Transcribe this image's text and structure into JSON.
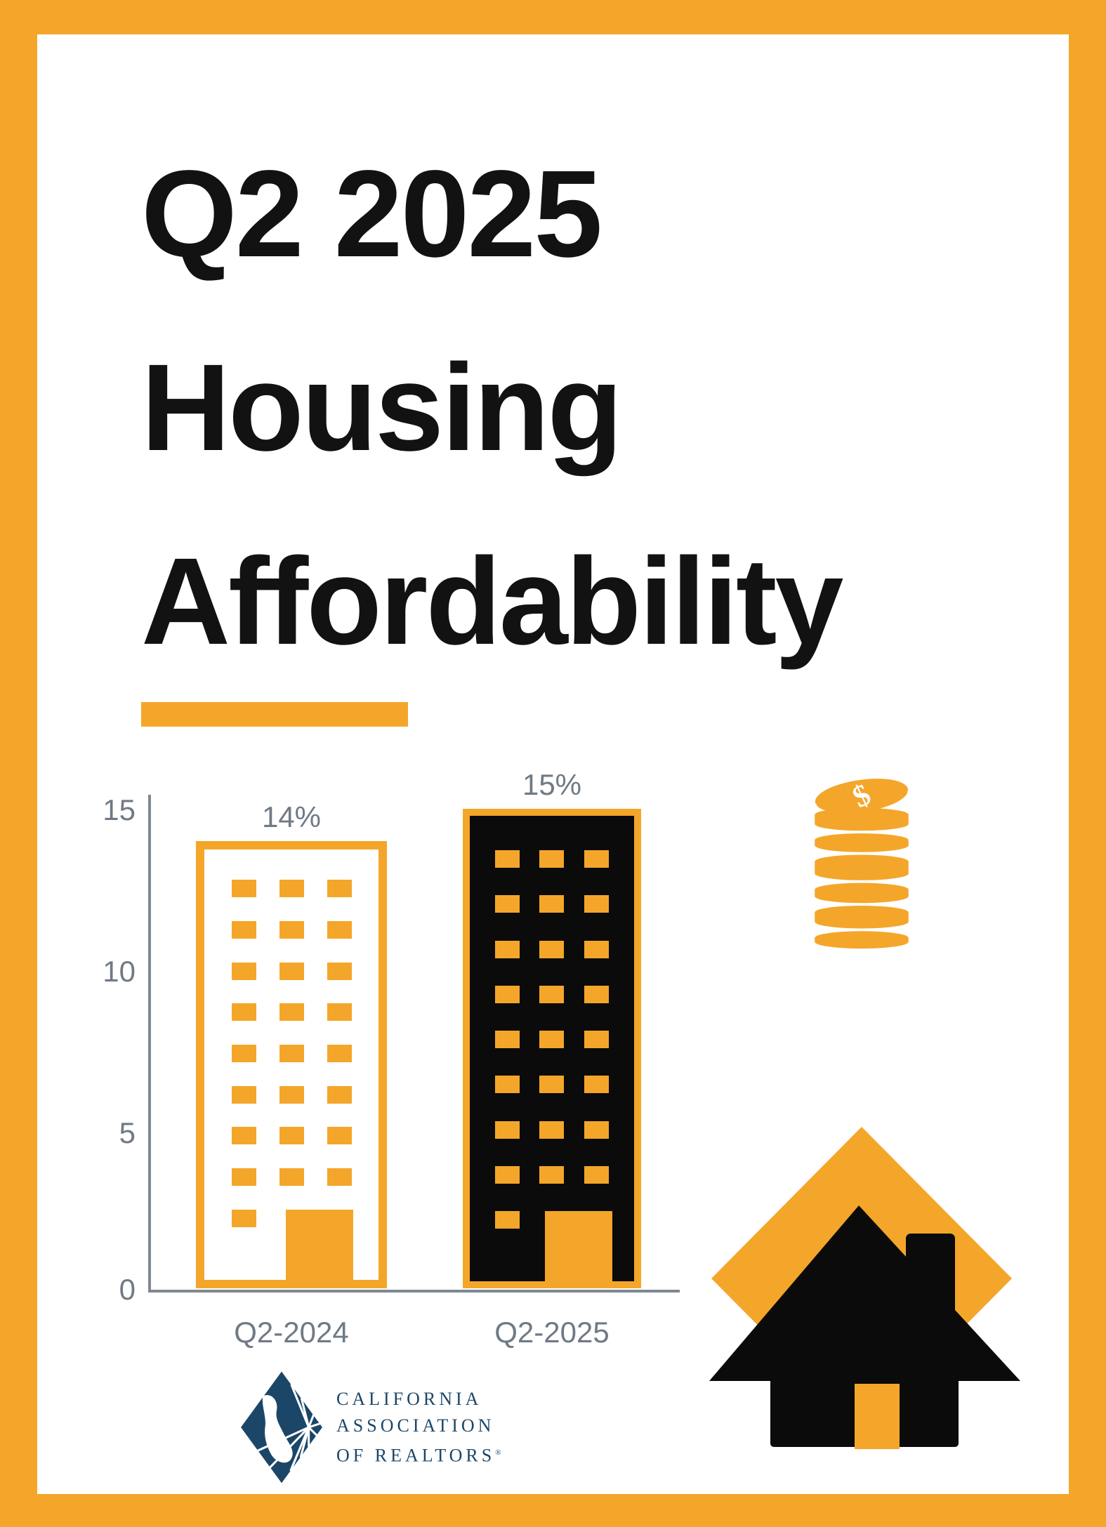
{
  "poster": {
    "title_lines": [
      "Q2 2025",
      "Housing",
      "Affordability"
    ]
  },
  "chart_data": {
    "type": "bar",
    "categories": [
      "Q2-2024",
      "Q2-2025"
    ],
    "values": [
      14,
      15
    ],
    "value_labels": [
      "14%",
      "15%"
    ],
    "title": "",
    "xlabel": "",
    "ylabel": "",
    "ylim": [
      0,
      15
    ],
    "yticks": [
      0,
      5,
      10,
      15
    ],
    "grid": false,
    "legend": false,
    "bar_variants": [
      "outlined-building",
      "filled-building"
    ],
    "building_style": {
      "window_rows": 8,
      "window_cols": 3
    }
  },
  "icons": {
    "coin_stack": "coin-stack-icon",
    "house": "house-icon",
    "dollar_sign": "$"
  },
  "logo": {
    "lines": [
      "CALIFORNIA",
      "ASSOCIATION",
      "OF REALTORS"
    ],
    "registered_mark": "®"
  },
  "colors": {
    "accent_orange": "#F4A62A",
    "ink_black": "#121212",
    "label_gray": "#6F7A85",
    "axis_gray": "#7E8893",
    "logo_navy": "#1B4668",
    "background": "#FFFFFF"
  }
}
